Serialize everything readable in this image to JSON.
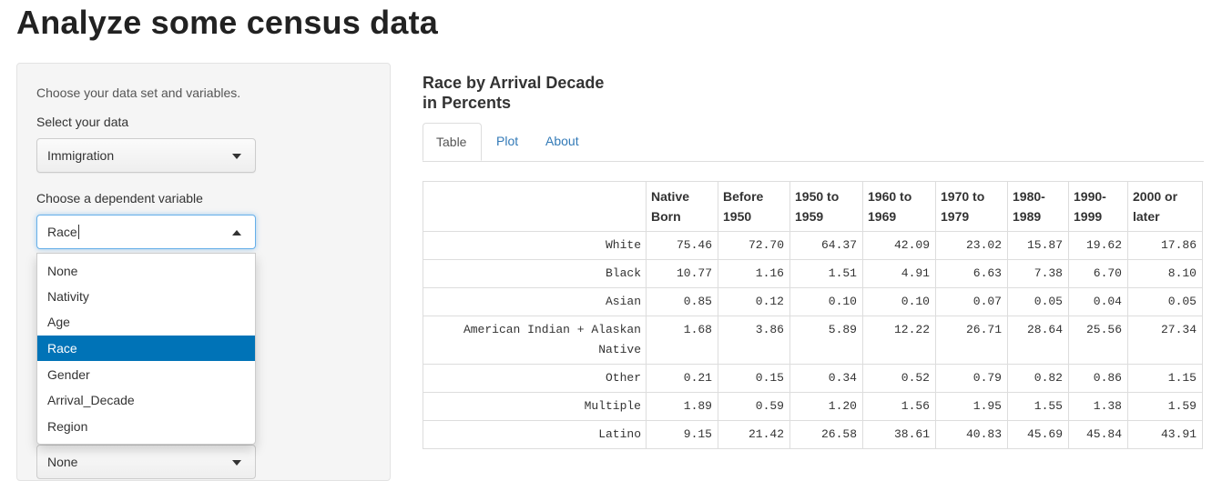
{
  "app_title": "Analyze some census data",
  "sidebar": {
    "intro": "Choose your data set and variables.",
    "data_label": "Select your data",
    "data_value": "Immigration",
    "dependent_label": "Choose a dependent variable",
    "dependent_value": "Race",
    "dependent_options": [
      "None",
      "Nativity",
      "Age",
      "Race",
      "Gender",
      "Arrival_Decade",
      "Region"
    ],
    "dependent_selected_index": 3,
    "hidden_select_value": "None"
  },
  "main": {
    "title_line1": "Race by Arrival Decade",
    "title_line2": "in Percents",
    "tabs": [
      {
        "label": "Table",
        "active": true
      },
      {
        "label": "Plot",
        "active": false
      },
      {
        "label": "About",
        "active": false
      }
    ],
    "table": {
      "columns": [
        [
          "Native",
          "Born"
        ],
        [
          "Before",
          "1950"
        ],
        [
          "1950 to",
          "1959"
        ],
        [
          "1960 to",
          "1969"
        ],
        [
          "1970 to",
          "1979"
        ],
        [
          "1980-",
          "1989"
        ],
        [
          "1990-",
          "1999"
        ],
        [
          "2000 or",
          "later"
        ]
      ],
      "rows": [
        {
          "name": [
            "White"
          ],
          "values": [
            "75.46",
            "72.70",
            "64.37",
            "42.09",
            "23.02",
            "15.87",
            "19.62",
            "17.86"
          ]
        },
        {
          "name": [
            "Black"
          ],
          "values": [
            "10.77",
            "1.16",
            "1.51",
            "4.91",
            "6.63",
            "7.38",
            "6.70",
            "8.10"
          ]
        },
        {
          "name": [
            "Asian"
          ],
          "values": [
            "0.85",
            "0.12",
            "0.10",
            "0.10",
            "0.07",
            "0.05",
            "0.04",
            "0.05"
          ]
        },
        {
          "name": [
            "American Indian + Alaskan",
            "Native"
          ],
          "values": [
            "1.68",
            "3.86",
            "5.89",
            "12.22",
            "26.71",
            "28.64",
            "25.56",
            "27.34"
          ]
        },
        {
          "name": [
            "Other"
          ],
          "values": [
            "0.21",
            "0.15",
            "0.34",
            "0.52",
            "0.79",
            "0.82",
            "0.86",
            "1.15"
          ]
        },
        {
          "name": [
            "Multiple"
          ],
          "values": [
            "1.89",
            "0.59",
            "1.20",
            "1.56",
            "1.95",
            "1.55",
            "1.38",
            "1.59"
          ]
        },
        {
          "name": [
            "Latino"
          ],
          "values": [
            "9.15",
            "21.42",
            "26.58",
            "38.61",
            "40.83",
            "45.69",
            "45.84",
            "43.91"
          ]
        }
      ]
    }
  },
  "colors": {
    "selected_option_bg": "#0073b7",
    "link": "#337ab7",
    "focus_border": "#66afe9"
  }
}
